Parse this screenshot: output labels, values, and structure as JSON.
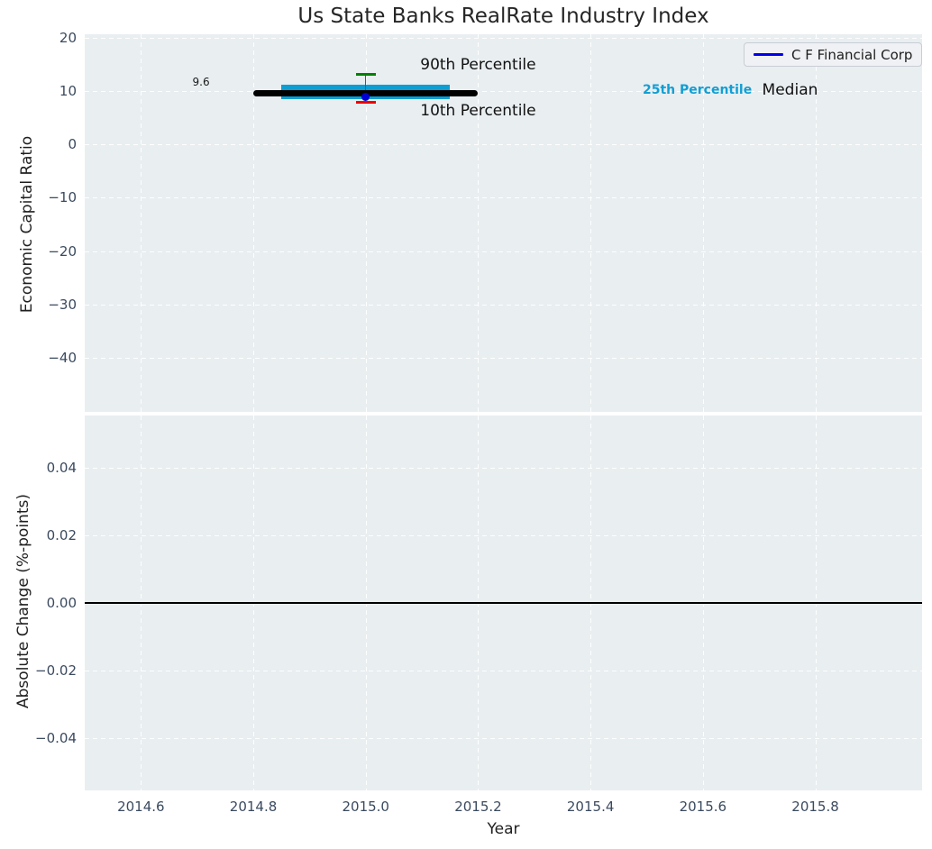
{
  "title": "Us State Banks RealRate Industry Index",
  "legend": {
    "label": "C F Financial Corp"
  },
  "colors": {
    "plot_bg": "#e9eef1",
    "grid": "#ffffff",
    "tick_label": "#3b4a5f",
    "title_text": "#262626",
    "iqr_box": "#0a9ed4",
    "median_line": "#000000",
    "p90_cap": "#008000",
    "p10_cap": "#ee0000",
    "company_dot": "#0000d4",
    "legend_line": "#0000ee",
    "percentile25_text": "#119fd4",
    "zero_line": "#000000"
  },
  "chart_data": [
    {
      "type": "box-distribution",
      "title": "Us State Banks RealRate Industry Index",
      "xlabel": "Year",
      "ylabel": "Economic Capital Ratio",
      "xlim": [
        2014.5,
        2015.99
      ],
      "ylim": [
        -50.1,
        20.6
      ],
      "xticks": [
        2014.6,
        2014.8,
        2015.0,
        2015.2,
        2015.4,
        2015.6,
        2015.8
      ],
      "xtick_labels": [
        "2014.6",
        "2014.8",
        "2015.0",
        "2015.2",
        "2015.4",
        "2015.6",
        "2015.8"
      ],
      "yticks": [
        20,
        10,
        0,
        -10,
        -20,
        -30,
        -40
      ],
      "ytick_labels": [
        "20",
        "10",
        "0",
        "−10",
        "−20",
        "−30",
        "−40"
      ],
      "grid": true,
      "legend_entries": [
        {
          "label": "C F Financial Corp",
          "color": "#0000ee"
        }
      ],
      "legend_position": "upper right",
      "distribution": {
        "x": 2015.0,
        "median": 9.6,
        "median_label": "9.6",
        "median_span": [
          2014.8,
          2015.2
        ],
        "p25": 8.5,
        "p75": 11.2,
        "box_span": [
          2014.85,
          2015.15
        ],
        "p10": 7.8,
        "p90": 13.1
      },
      "series": [
        {
          "name": "C F Financial Corp",
          "x": [
            2015.0
          ],
          "values": [
            8.9
          ]
        }
      ],
      "annotations": [
        {
          "id": "median-value",
          "text": "9.6",
          "x": 2014.707,
          "y": 11.6,
          "color": "#1a1a1a",
          "size": 12,
          "weight": 400
        },
        {
          "id": "p90-label",
          "text": "90th Percentile",
          "x": 2015.2,
          "y": 14.9,
          "color": "#111111",
          "size": 17,
          "weight": 400
        },
        {
          "id": "p10-label",
          "text": "10th Percentile",
          "x": 2015.2,
          "y": 6.3,
          "color": "#111111",
          "size": 17,
          "weight": 400
        },
        {
          "id": "p25-label",
          "text": "25th Percentile",
          "x": 2015.59,
          "y": 10.1,
          "color": "#119fd4",
          "size": 14,
          "weight": 700
        },
        {
          "id": "median-label",
          "text": "Median",
          "x": 2015.755,
          "y": 10.1,
          "color": "#111111",
          "size": 17,
          "weight": 400
        }
      ]
    },
    {
      "type": "line",
      "xlabel": "Year",
      "ylabel": "Absolute Change (%-points)",
      "xlim": [
        2014.5,
        2015.99
      ],
      "ylim": [
        -0.0555,
        0.0555
      ],
      "xticks": [
        2014.6,
        2014.8,
        2015.0,
        2015.2,
        2015.4,
        2015.6,
        2015.8
      ],
      "xtick_labels": [
        "2014.6",
        "2014.8",
        "2015.0",
        "2015.2",
        "2015.4",
        "2015.6",
        "2015.8"
      ],
      "yticks": [
        0.04,
        0.02,
        0,
        -0.02,
        -0.04
      ],
      "ytick_labels": [
        "0.04",
        "0.02",
        "0.00",
        "−0.02",
        "−0.04"
      ],
      "grid": true,
      "zero_line": 0.0,
      "series": []
    }
  ]
}
